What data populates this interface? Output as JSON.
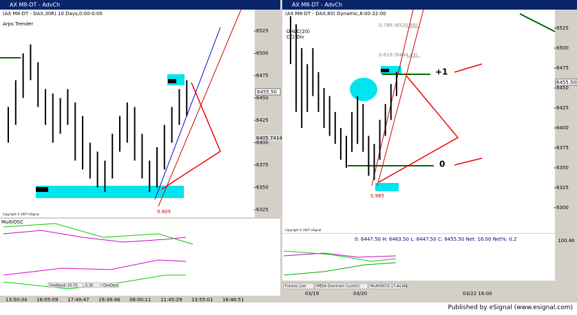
{
  "left_window": {
    "title": "AX M8-DT - AdvCh",
    "symbol": "(AX M8-DT - DAX,30R) 10 Days,0:00-0:00",
    "study": "Arps Trender",
    "price_ticks": [
      6525,
      6500,
      6475,
      6450,
      6425,
      6400,
      6375,
      6350,
      6325
    ],
    "last_price": "6455.50",
    "level_label": "6405.7414",
    "annotation": "0.905",
    "oscillator": "MultiOSC",
    "time_labels": [
      "13:50:34",
      "16:05:09",
      "17:49:47",
      "19:38:46",
      "08:00:11",
      "11:45:29",
      "13:55:01",
      "16:46:51"
    ],
    "buttons": [
      "OneBand",
      "10-70",
      "5-35",
      "OneDesc"
    ],
    "copyright": "Copyright © 2007 eSignal.",
    "bars": [
      [
        6440,
        6400
      ],
      [
        6470,
        6420
      ],
      [
        6500,
        6450
      ],
      [
        6510,
        6470
      ],
      [
        6490,
        6440
      ],
      [
        6460,
        6420
      ],
      [
        6455,
        6400
      ],
      [
        6450,
        6410
      ],
      [
        6460,
        6420
      ],
      [
        6445,
        6380
      ],
      [
        6430,
        6370
      ],
      [
        6400,
        6360
      ],
      [
        6390,
        6350
      ],
      [
        6380,
        6345
      ],
      [
        6410,
        6360
      ],
      [
        6430,
        6390
      ],
      [
        6445,
        6400
      ],
      [
        6440,
        6380
      ],
      [
        6410,
        6360
      ],
      [
        6380,
        6345
      ],
      [
        6395,
        6350
      ],
      [
        6420,
        6370
      ],
      [
        6440,
        6400
      ],
      [
        6460,
        6420
      ],
      [
        6470,
        6430
      ]
    ]
  },
  "right_window": {
    "title": "AX M8-DT - AdvCh",
    "symbol": "(AX M8-DT - DAX,60) Dynamic,8:00-22:00",
    "studies": [
      "OHLC(20)",
      "CCI Div"
    ],
    "price_ticks": [
      6525,
      6500,
      6475,
      6450,
      6425,
      6400,
      6375,
      6350,
      6325,
      6300
    ],
    "last_price": "6455.50",
    "fib_labels": [
      "0.786 (6520.99)",
      "0.618 (6484.43)"
    ],
    "plus_one": "+1",
    "zero": "0",
    "annotation": "0.965",
    "info": "0: 6447.50   H: 6463.50   L: 6447.50   C: 6455.50   Net: 16.00   Net%: 0.2",
    "osc_tick": "100.46",
    "tabs": [
      "Futures Live",
      "MESA Dominant Cycle(C)",
      "MultiOSC(5-17,All,All)"
    ],
    "dates": [
      "03/19",
      "03/20",
      "03/22 16:00"
    ],
    "copyright": "Copyright © 2007 eSignal.",
    "bars": [
      [
        6540,
        6480
      ],
      [
        6530,
        6420
      ],
      [
        6500,
        6400
      ],
      [
        6480,
        6420
      ],
      [
        6500,
        6440
      ],
      [
        6470,
        6420
      ],
      [
        6450,
        6400
      ],
      [
        6440,
        6390
      ],
      [
        6420,
        6380
      ],
      [
        6400,
        6360
      ],
      [
        6390,
        6350
      ],
      [
        6420,
        6370
      ],
      [
        6440,
        6380
      ],
      [
        6430,
        6370
      ],
      [
        6390,
        6340
      ],
      [
        6380,
        6335
      ],
      [
        6410,
        6360
      ],
      [
        6430,
        6390
      ],
      [
        6455,
        6410
      ],
      [
        6470,
        6440
      ]
    ]
  },
  "footer": "Published by eSignal (www.esignal.com)"
}
